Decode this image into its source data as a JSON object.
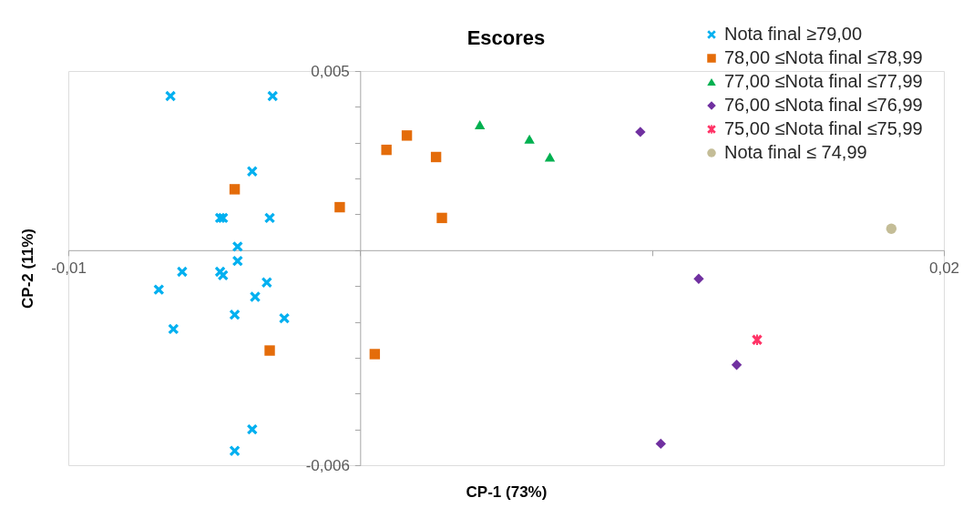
{
  "chart_data": {
    "type": "scatter",
    "title": "Escores",
    "xlabel": "CP-1 (73%)",
    "ylabel": "CP-2 (11%)",
    "xlim": [
      -0.01,
      0.02
    ],
    "ylim": [
      -0.006,
      0.005
    ],
    "xticks": [
      {
        "value": -0.01,
        "label": "-0,01"
      },
      {
        "value": 0,
        "label": null
      },
      {
        "value": 0.01,
        "label": null
      },
      {
        "value": 0.02,
        "label": "0,02"
      }
    ],
    "yticks": [
      {
        "value": 0.005,
        "label": "0,005"
      },
      {
        "value": 0.004,
        "label": null
      },
      {
        "value": 0.003,
        "label": null
      },
      {
        "value": 0.002,
        "label": null
      },
      {
        "value": 0.001,
        "label": null
      },
      {
        "value": 0,
        "label": null
      },
      {
        "value": -0.001,
        "label": null
      },
      {
        "value": -0.002,
        "label": null
      },
      {
        "value": -0.003,
        "label": null
      },
      {
        "value": -0.004,
        "label": null
      },
      {
        "value": -0.005,
        "label": null
      },
      {
        "value": -0.006,
        "label": "-0,006"
      }
    ],
    "grid": false,
    "legend": "top right",
    "series": [
      {
        "name": "Nota final ≥79,00",
        "color": "#00b0f0",
        "marker": "cross",
        "x": [
          -0.0065,
          -0.003,
          -0.0037,
          -0.0048,
          -0.0047,
          -0.0031,
          -0.0042,
          -0.0042,
          -0.0061,
          -0.0048,
          -0.0047,
          -0.0069,
          -0.0032,
          -0.0036,
          -0.0043,
          -0.0026,
          -0.0064,
          -0.0037,
          -0.0043
        ],
        "values": [
          0.0043,
          0.0043,
          0.0022,
          0.0009,
          0.0009,
          0.0009,
          0.0001,
          -0.0003,
          -0.0006,
          -0.0006,
          -0.0007,
          -0.0011,
          -0.0009,
          -0.0013,
          -0.0018,
          -0.0019,
          -0.0022,
          -0.005,
          -0.0056
        ]
      },
      {
        "name": "78,00 ≤Nota final ≤78,99",
        "color": "#e46c0a",
        "marker": "square",
        "x": [
          -0.0043,
          -0.0007,
          0.0009,
          0.0016,
          0.0026,
          0.0028,
          -0.0031,
          0.0005
        ],
        "values": [
          0.0017,
          0.0012,
          0.0028,
          0.0032,
          0.0026,
          0.0009,
          -0.0028,
          -0.0029
        ]
      },
      {
        "name": "77,00 ≤Nota final ≤77,99",
        "color": "#00b050",
        "marker": "triangle",
        "x": [
          0.0041,
          0.0058,
          0.0065
        ],
        "values": [
          0.0035,
          0.0031,
          0.0026
        ]
      },
      {
        "name": "76,00 ≤Nota final ≤76,99",
        "color": "#7030a0",
        "marker": "diamond",
        "x": [
          0.0096,
          0.0116,
          0.0129,
          0.0103
        ],
        "values": [
          0.0033,
          -0.0008,
          -0.0032,
          -0.0054
        ]
      },
      {
        "name": "75,00 ≤Nota final ≤75,99",
        "color": "#ff3366",
        "marker": "star",
        "x": [
          0.0136
        ],
        "values": [
          -0.0025
        ]
      },
      {
        "name": "Nota final ≤ 74,99",
        "color": "#c4bd97",
        "marker": "circle",
        "x": [
          0.0182
        ],
        "values": [
          0.0006
        ]
      }
    ]
  }
}
